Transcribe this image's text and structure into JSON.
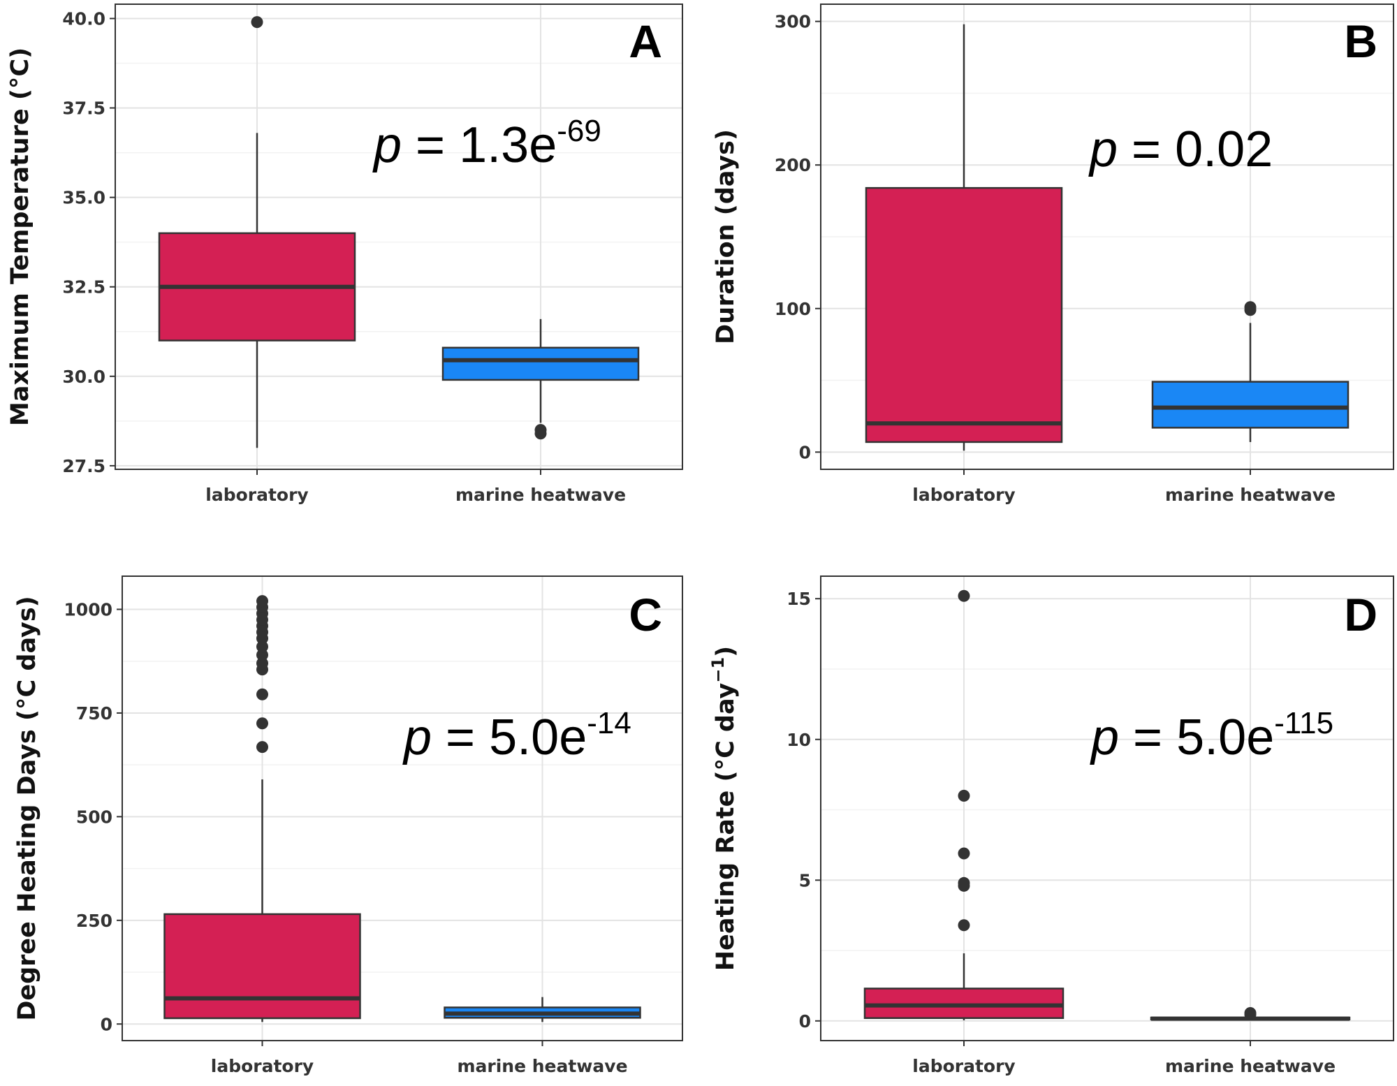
{
  "chart_data": [
    {
      "panel": "A",
      "type": "box",
      "ylabel": "Maximum Temperature (°C)",
      "ylim": [
        27.4,
        40.4
      ],
      "yticks": [
        27.5,
        30.0,
        32.5,
        35.0,
        37.5,
        40.0
      ],
      "ytick_labels": [
        "27.5",
        "30.0",
        "32.5",
        "35.0",
        "37.5",
        "40.0"
      ],
      "categories": [
        "laboratory",
        "marine heatwave"
      ],
      "boxes": [
        {
          "category": "laboratory",
          "color": "#d42054",
          "q1": 31.0,
          "median": 32.5,
          "q3": 34.0,
          "whisker_low": 28.0,
          "whisker_high": 36.8,
          "outliers": [
            39.9
          ]
        },
        {
          "category": "marine heatwave",
          "color": "#1a87f5",
          "q1": 29.9,
          "median": 30.45,
          "q3": 30.8,
          "whisker_low": 28.7,
          "whisker_high": 31.6,
          "outliers": [
            28.4,
            28.5
          ]
        }
      ],
      "p_value": {
        "prefix": "p",
        "eq": " = 1.3e",
        "exp": "-69"
      }
    },
    {
      "panel": "B",
      "type": "box",
      "ylabel": "Duration (days)",
      "ylim": [
        -12,
        312
      ],
      "yticks": [
        0,
        100,
        200,
        300
      ],
      "ytick_labels": [
        "0",
        "100",
        "200",
        "300"
      ],
      "categories": [
        "laboratory",
        "marine heatwave"
      ],
      "boxes": [
        {
          "category": "laboratory",
          "color": "#d42054",
          "q1": 7,
          "median": 20,
          "q3": 184,
          "whisker_low": 1,
          "whisker_high": 298,
          "outliers": []
        },
        {
          "category": "marine heatwave",
          "color": "#1a87f5",
          "q1": 17,
          "median": 31,
          "q3": 49,
          "whisker_low": 7,
          "whisker_high": 90,
          "outliers": [
            99,
            101
          ]
        }
      ],
      "p_value": {
        "prefix": "p",
        "eq": " = 0.02",
        "exp": ""
      }
    },
    {
      "panel": "C",
      "type": "box",
      "ylabel": "Degree Heating Days (°C days)",
      "ylim": [
        -40,
        1080
      ],
      "yticks": [
        0,
        250,
        500,
        750,
        1000
      ],
      "ytick_labels": [
        "0",
        "250",
        "500",
        "750",
        "1000"
      ],
      "categories": [
        "laboratory",
        "marine heatwave"
      ],
      "boxes": [
        {
          "category": "laboratory",
          "color": "#d42054",
          "q1": 14,
          "median": 62,
          "q3": 265,
          "whisker_low": 5,
          "whisker_high": 590,
          "outliers": [
            668,
            725,
            795,
            855,
            870,
            890,
            910,
            930,
            945,
            960,
            975,
            990,
            1005,
            1020
          ]
        },
        {
          "category": "marine heatwave",
          "color": "#1a87f5",
          "q1": 15,
          "median": 25,
          "q3": 40,
          "whisker_low": 5,
          "whisker_high": 65,
          "outliers": []
        }
      ],
      "p_value": {
        "prefix": "p",
        "eq": " = 5.0e",
        "exp": "-14"
      }
    },
    {
      "panel": "D",
      "type": "box",
      "ylabel": "Heating Rate (°C day",
      "ylabel_sup": "−1",
      "ylabel_end": ")",
      "ylim": [
        -0.7,
        15.8
      ],
      "yticks": [
        0,
        5,
        10,
        15
      ],
      "ytick_labels": [
        "0",
        "5",
        "10",
        "15"
      ],
      "categories": [
        "laboratory",
        "marine heatwave"
      ],
      "boxes": [
        {
          "category": "laboratory",
          "color": "#d42054",
          "q1": 0.1,
          "median": 0.55,
          "q3": 1.15,
          "whisker_low": 0.02,
          "whisker_high": 2.4,
          "outliers": [
            3.4,
            4.8,
            4.9,
            5.95,
            8.0,
            15.1
          ]
        },
        {
          "category": "marine heatwave",
          "color": "#1a87f5",
          "q1": 0.05,
          "median": 0.08,
          "q3": 0.12,
          "whisker_low": 0.02,
          "whisker_high": 0.18,
          "outliers": [
            0.22,
            0.28
          ]
        }
      ],
      "p_value": {
        "prefix": "p",
        "eq": " = 5.0e",
        "exp": "-115"
      }
    }
  ]
}
